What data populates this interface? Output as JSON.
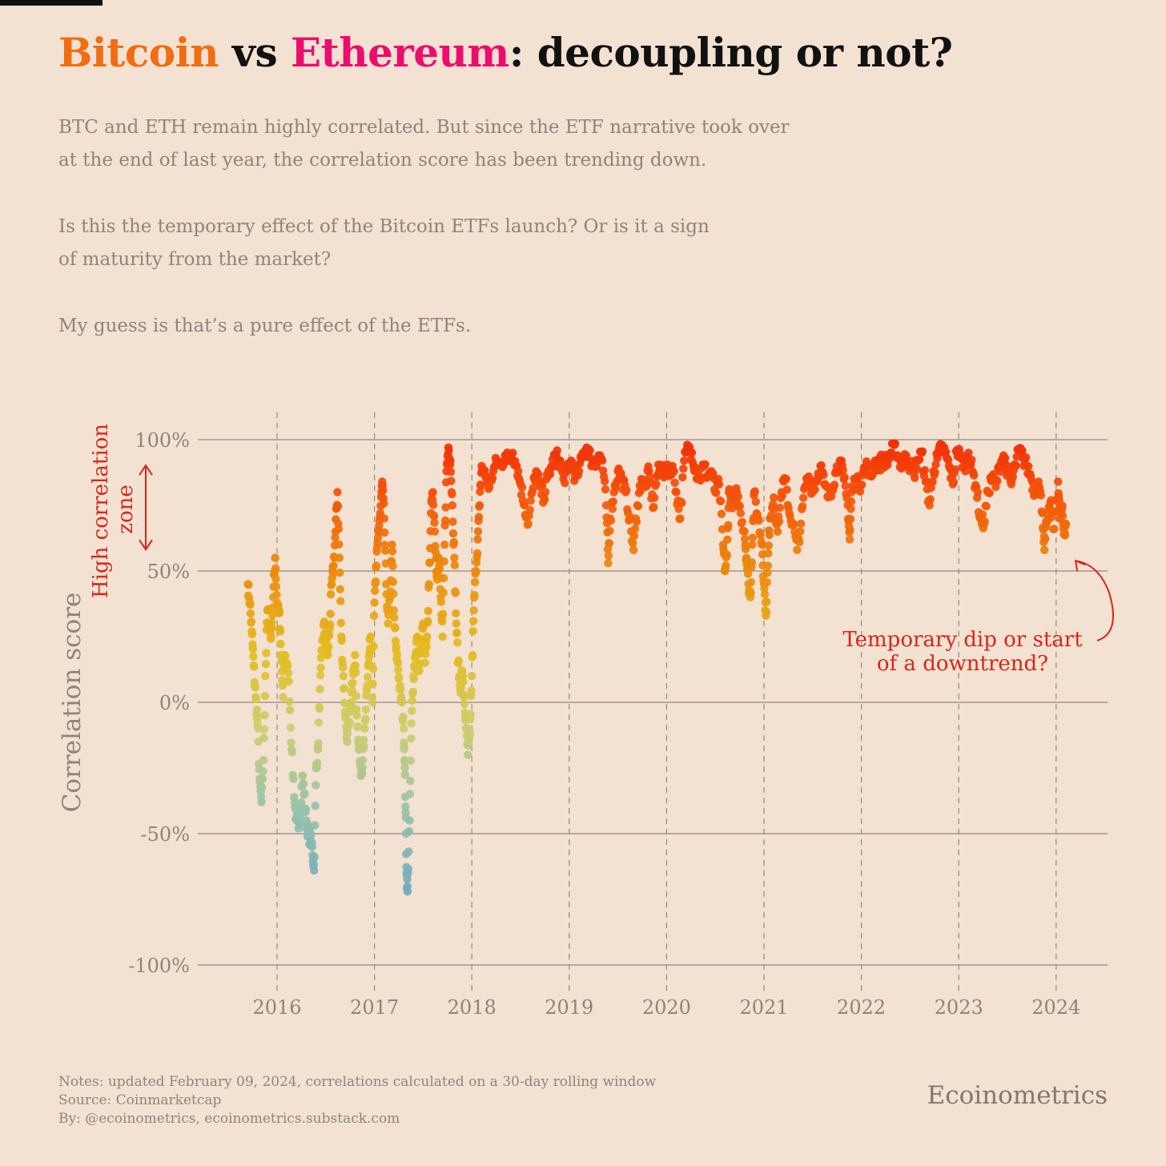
{
  "header": {
    "title_part1": "Bitcoin",
    "title_part2": " vs ",
    "title_part3": "Ethereum",
    "title_part4": ": decoupling or not?",
    "paragraph1_line1": "BTC and ETH remain highly correlated. But since the ETF narrative took over",
    "paragraph1_line2": "at the end of last year, the correlation score has been trending down.",
    "paragraph2_line1": "Is this the temporary effect of the Bitcoin ETFs launch? Or is it a sign",
    "paragraph2_line2": "of maturity from the market?",
    "paragraph3": "My guess is that’s a pure effect of the ETFs."
  },
  "footer": {
    "notes": "Notes: updated February 09, 2024, correlations calculated on a 30-day rolling window",
    "source": "Source: Coinmarketcap",
    "by": "By: @ecoinometrics, ecoinometrics.substack.com",
    "brand": "Ecoinometrics"
  },
  "colors": {
    "background": "#f3e1d1",
    "bitcoin": "#f26c12",
    "ethereum": "#ec0c6e",
    "annotation": "#d8261c",
    "grid": "#8f8a86",
    "tick_text": "#8b8580"
  },
  "chart_data": {
    "type": "scatter",
    "title": "Bitcoin vs Ethereum: decoupling or not?",
    "ylabel": "Correlation score",
    "xlabel": "",
    "ylim": [
      -1,
      1
    ],
    "xlim": [
      2015.6,
      2024.5
    ],
    "y_ticks": [
      1,
      0.5,
      0,
      -0.5,
      -1
    ],
    "y_tick_labels": [
      "100%",
      "50%",
      "0%",
      "-50%",
      "-100%"
    ],
    "x_ticks": [
      2016,
      2017,
      2018,
      2019,
      2020,
      2021,
      2022,
      2023,
      2024
    ],
    "x_tick_labels": [
      "2016",
      "2017",
      "2018",
      "2019",
      "2020",
      "2021",
      "2022",
      "2023",
      "2024"
    ],
    "grid": "horizontal solid, vertical dashed at years",
    "color_scale": "low correlation blue/teal, mid yellow, high red",
    "zone_label_line1": "High correlation",
    "zone_label_line2": "zone",
    "zone_range": [
      0.6,
      0.92
    ],
    "annotation_line1": "Temporary dip or start",
    "annotation_line2": "of a downtrend?",
    "annotation_target": [
      2024.2,
      0.6
    ],
    "series_points": [
      [
        2015.7,
        0.45
      ],
      [
        2015.72,
        0.38
      ],
      [
        2015.74,
        0.27
      ],
      [
        2015.76,
        0.14
      ],
      [
        2015.78,
        0.02
      ],
      [
        2015.8,
        -0.08
      ],
      [
        2015.82,
        -0.3
      ],
      [
        2015.84,
        -0.38
      ],
      [
        2015.86,
        -0.22
      ],
      [
        2015.88,
        0.1
      ],
      [
        2015.9,
        0.35
      ],
      [
        2015.92,
        0.3
      ],
      [
        2015.94,
        0.25
      ],
      [
        2015.96,
        0.4
      ],
      [
        2015.98,
        0.55
      ],
      [
        2016.0,
        0.38
      ],
      [
        2016.02,
        0.35
      ],
      [
        2016.04,
        0.18
      ],
      [
        2016.06,
        0.02
      ],
      [
        2016.08,
        0.18
      ],
      [
        2016.1,
        0.14
      ],
      [
        2016.12,
        0.08
      ],
      [
        2016.15,
        -0.18
      ],
      [
        2016.18,
        -0.38
      ],
      [
        2016.2,
        -0.45
      ],
      [
        2016.22,
        -0.48
      ],
      [
        2016.24,
        -0.4
      ],
      [
        2016.26,
        -0.28
      ],
      [
        2016.28,
        -0.35
      ],
      [
        2016.3,
        -0.45
      ],
      [
        2016.32,
        -0.5
      ],
      [
        2016.34,
        -0.52
      ],
      [
        2016.36,
        -0.55
      ],
      [
        2016.38,
        -0.64
      ],
      [
        2016.4,
        -0.25
      ],
      [
        2016.42,
        -0.18
      ],
      [
        2016.44,
        0.05
      ],
      [
        2016.46,
        0.2
      ],
      [
        2016.48,
        0.3
      ],
      [
        2016.5,
        0.22
      ],
      [
        2016.52,
        0.18
      ],
      [
        2016.54,
        0.28
      ],
      [
        2016.56,
        0.45
      ],
      [
        2016.58,
        0.52
      ],
      [
        2016.6,
        0.65
      ],
      [
        2016.62,
        0.8
      ],
      [
        2016.64,
        0.55
      ],
      [
        2016.66,
        0.25
      ],
      [
        2016.68,
        0.1
      ],
      [
        2016.7,
        -0.05
      ],
      [
        2016.72,
        -0.15
      ],
      [
        2016.74,
        -0.08
      ],
      [
        2016.76,
        0.0
      ],
      [
        2016.78,
        0.12
      ],
      [
        2016.8,
        0.18
      ],
      [
        2016.82,
        -0.05
      ],
      [
        2016.84,
        -0.18
      ],
      [
        2016.86,
        -0.28
      ],
      [
        2016.88,
        -0.22
      ],
      [
        2016.9,
        -0.1
      ],
      [
        2016.92,
        0.05
      ],
      [
        2016.94,
        0.15
      ],
      [
        2016.96,
        0.25
      ],
      [
        2016.98,
        0.0
      ],
      [
        2017.0,
        0.38
      ],
      [
        2017.02,
        0.52
      ],
      [
        2017.04,
        0.65
      ],
      [
        2017.06,
        0.72
      ],
      [
        2017.08,
        0.84
      ],
      [
        2017.1,
        0.7
      ],
      [
        2017.12,
        0.45
      ],
      [
        2017.14,
        0.3
      ],
      [
        2017.16,
        0.4
      ],
      [
        2017.18,
        0.6
      ],
      [
        2017.2,
        0.35
      ],
      [
        2017.22,
        0.2
      ],
      [
        2017.24,
        0.15
      ],
      [
        2017.26,
        0.05
      ],
      [
        2017.28,
        0.0
      ],
      [
        2017.3,
        -0.1
      ],
      [
        2017.31,
        -0.22
      ],
      [
        2017.32,
        -0.42
      ],
      [
        2017.33,
        -0.65
      ],
      [
        2017.34,
        -0.72
      ],
      [
        2017.36,
        -0.45
      ],
      [
        2017.38,
        -0.08
      ],
      [
        2017.4,
        0.1
      ],
      [
        2017.42,
        0.18
      ],
      [
        2017.44,
        0.25
      ],
      [
        2017.46,
        0.12
      ],
      [
        2017.48,
        0.2
      ],
      [
        2017.5,
        0.3
      ],
      [
        2017.52,
        0.15
      ],
      [
        2017.54,
        0.25
      ],
      [
        2017.56,
        0.45
      ],
      [
        2017.58,
        0.72
      ],
      [
        2017.6,
        0.8
      ],
      [
        2017.62,
        0.65
      ],
      [
        2017.64,
        0.48
      ],
      [
        2017.66,
        0.55
      ],
      [
        2017.68,
        0.4
      ],
      [
        2017.7,
        0.25
      ],
      [
        2017.72,
        0.6
      ],
      [
        2017.74,
        0.88
      ],
      [
        2017.76,
        0.97
      ],
      [
        2017.78,
        0.92
      ],
      [
        2017.8,
        0.75
      ],
      [
        2017.82,
        0.55
      ],
      [
        2017.84,
        0.3
      ],
      [
        2017.86,
        0.15
      ],
      [
        2017.88,
        0.05
      ],
      [
        2017.9,
        0.12
      ],
      [
        2017.92,
        0.02
      ],
      [
        2017.94,
        -0.1
      ],
      [
        2017.96,
        -0.2
      ],
      [
        2017.98,
        -0.12
      ],
      [
        2018.0,
        0.1
      ],
      [
        2018.02,
        0.35
      ],
      [
        2018.04,
        0.5
      ],
      [
        2018.06,
        0.62
      ],
      [
        2018.08,
        0.75
      ],
      [
        2018.1,
        0.9
      ],
      [
        2018.14,
        0.86
      ],
      [
        2018.18,
        0.82
      ],
      [
        2018.22,
        0.88
      ],
      [
        2018.26,
        0.92
      ],
      [
        2018.3,
        0.9
      ],
      [
        2018.34,
        0.94
      ],
      [
        2018.38,
        0.92
      ],
      [
        2018.42,
        0.95
      ],
      [
        2018.46,
        0.9
      ],
      [
        2018.5,
        0.83
      ],
      [
        2018.54,
        0.75
      ],
      [
        2018.58,
        0.68
      ],
      [
        2018.62,
        0.8
      ],
      [
        2018.66,
        0.88
      ],
      [
        2018.7,
        0.82
      ],
      [
        2018.74,
        0.78
      ],
      [
        2018.78,
        0.86
      ],
      [
        2018.82,
        0.9
      ],
      [
        2018.86,
        0.94
      ],
      [
        2018.9,
        0.92
      ],
      [
        2018.94,
        0.85
      ],
      [
        2018.98,
        0.88
      ],
      [
        2019.02,
        0.92
      ],
      [
        2019.06,
        0.86
      ],
      [
        2019.1,
        0.88
      ],
      [
        2019.14,
        0.95
      ],
      [
        2019.18,
        0.97
      ],
      [
        2019.22,
        0.93
      ],
      [
        2019.26,
        0.9
      ],
      [
        2019.3,
        0.94
      ],
      [
        2019.34,
        0.92
      ],
      [
        2019.38,
        0.75
      ],
      [
        2019.4,
        0.53
      ],
      [
        2019.42,
        0.7
      ],
      [
        2019.46,
        0.8
      ],
      [
        2019.5,
        0.88
      ],
      [
        2019.54,
        0.85
      ],
      [
        2019.58,
        0.8
      ],
      [
        2019.62,
        0.7
      ],
      [
        2019.66,
        0.58
      ],
      [
        2019.7,
        0.75
      ],
      [
        2019.74,
        0.85
      ],
      [
        2019.78,
        0.82
      ],
      [
        2019.82,
        0.88
      ],
      [
        2019.86,
        0.74
      ],
      [
        2019.9,
        0.86
      ],
      [
        2019.94,
        0.9
      ],
      [
        2019.98,
        0.87
      ],
      [
        2020.02,
        0.88
      ],
      [
        2020.06,
        0.9
      ],
      [
        2020.1,
        0.8
      ],
      [
        2020.14,
        0.7
      ],
      [
        2020.18,
        0.92
      ],
      [
        2020.22,
        0.97
      ],
      [
        2020.26,
        0.95
      ],
      [
        2020.3,
        0.88
      ],
      [
        2020.34,
        0.85
      ],
      [
        2020.38,
        0.9
      ],
      [
        2020.42,
        0.86
      ],
      [
        2020.46,
        0.88
      ],
      [
        2020.5,
        0.8
      ],
      [
        2020.54,
        0.83
      ],
      [
        2020.58,
        0.6
      ],
      [
        2020.6,
        0.5
      ],
      [
        2020.62,
        0.56
      ],
      [
        2020.64,
        0.8
      ],
      [
        2020.66,
        0.78
      ],
      [
        2020.7,
        0.75
      ],
      [
        2020.72,
        0.8
      ],
      [
        2020.76,
        0.72
      ],
      [
        2020.8,
        0.65
      ],
      [
        2020.82,
        0.55
      ],
      [
        2020.84,
        0.45
      ],
      [
        2020.86,
        0.4
      ],
      [
        2020.88,
        0.6
      ],
      [
        2020.9,
        0.8
      ],
      [
        2020.94,
        0.7
      ],
      [
        2020.98,
        0.6
      ],
      [
        2021.0,
        0.45
      ],
      [
        2021.02,
        0.33
      ],
      [
        2021.04,
        0.52
      ],
      [
        2021.06,
        0.7
      ],
      [
        2021.1,
        0.78
      ],
      [
        2021.14,
        0.65
      ],
      [
        2021.18,
        0.8
      ],
      [
        2021.22,
        0.85
      ],
      [
        2021.26,
        0.72
      ],
      [
        2021.3,
        0.68
      ],
      [
        2021.34,
        0.58
      ],
      [
        2021.38,
        0.68
      ],
      [
        2021.42,
        0.82
      ],
      [
        2021.46,
        0.86
      ],
      [
        2021.5,
        0.8
      ],
      [
        2021.54,
        0.85
      ],
      [
        2021.58,
        0.9
      ],
      [
        2021.62,
        0.83
      ],
      [
        2021.66,
        0.78
      ],
      [
        2021.7,
        0.82
      ],
      [
        2021.74,
        0.88
      ],
      [
        2021.78,
        0.92
      ],
      [
        2021.82,
        0.85
      ],
      [
        2021.86,
        0.75
      ],
      [
        2021.88,
        0.62
      ],
      [
        2021.9,
        0.8
      ],
      [
        2021.94,
        0.85
      ],
      [
        2021.98,
        0.82
      ],
      [
        2022.02,
        0.88
      ],
      [
        2022.06,
        0.9
      ],
      [
        2022.1,
        0.86
      ],
      [
        2022.14,
        0.92
      ],
      [
        2022.18,
        0.9
      ],
      [
        2022.22,
        0.93
      ],
      [
        2022.26,
        0.91
      ],
      [
        2022.3,
        0.95
      ],
      [
        2022.34,
        0.98
      ],
      [
        2022.38,
        0.93
      ],
      [
        2022.42,
        0.9
      ],
      [
        2022.46,
        0.94
      ],
      [
        2022.5,
        0.9
      ],
      [
        2022.54,
        0.87
      ],
      [
        2022.58,
        0.92
      ],
      [
        2022.62,
        0.95
      ],
      [
        2022.66,
        0.84
      ],
      [
        2022.7,
        0.75
      ],
      [
        2022.74,
        0.88
      ],
      [
        2022.78,
        0.93
      ],
      [
        2022.82,
        0.97
      ],
      [
        2022.86,
        0.95
      ],
      [
        2022.9,
        0.9
      ],
      [
        2022.94,
        0.83
      ],
      [
        2022.98,
        0.96
      ],
      [
        2023.02,
        0.93
      ],
      [
        2023.06,
        0.9
      ],
      [
        2023.1,
        0.95
      ],
      [
        2023.14,
        0.88
      ],
      [
        2023.18,
        0.82
      ],
      [
        2023.22,
        0.7
      ],
      [
        2023.26,
        0.68
      ],
      [
        2023.3,
        0.8
      ],
      [
        2023.34,
        0.86
      ],
      [
        2023.38,
        0.82
      ],
      [
        2023.42,
        0.9
      ],
      [
        2023.46,
        0.94
      ],
      [
        2023.5,
        0.88
      ],
      [
        2023.54,
        0.83
      ],
      [
        2023.58,
        0.9
      ],
      [
        2023.62,
        0.96
      ],
      [
        2023.66,
        0.93
      ],
      [
        2023.7,
        0.9
      ],
      [
        2023.74,
        0.86
      ],
      [
        2023.78,
        0.8
      ],
      [
        2023.82,
        0.84
      ],
      [
        2023.86,
        0.72
      ],
      [
        2023.88,
        0.58
      ],
      [
        2023.9,
        0.68
      ],
      [
        2023.94,
        0.76
      ],
      [
        2023.98,
        0.66
      ],
      [
        2024.02,
        0.84
      ],
      [
        2024.04,
        0.7
      ],
      [
        2024.06,
        0.74
      ],
      [
        2024.08,
        0.64
      ],
      [
        2024.1,
        0.68
      ]
    ]
  }
}
